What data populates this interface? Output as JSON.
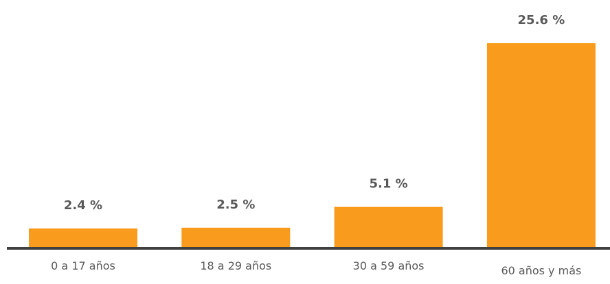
{
  "chart_data": {
    "type": "bar",
    "title": "",
    "xlabel": "",
    "ylabel": "",
    "categories": [
      "0 a 17 años",
      "18 a 29 años",
      "30 a 59 años",
      "60 años y más"
    ],
    "values": [
      2.4,
      2.5,
      5.1,
      25.6
    ],
    "value_labels": [
      "2.4 %",
      "2.5 %",
      "5.1 %",
      "25.6 %"
    ],
    "unit": "%",
    "ylim": [
      0,
      25.6
    ],
    "grid": false,
    "legend": "none",
    "colors": {
      "bar": "#F99B1C",
      "axis": "#404040",
      "text": "#595959"
    }
  }
}
